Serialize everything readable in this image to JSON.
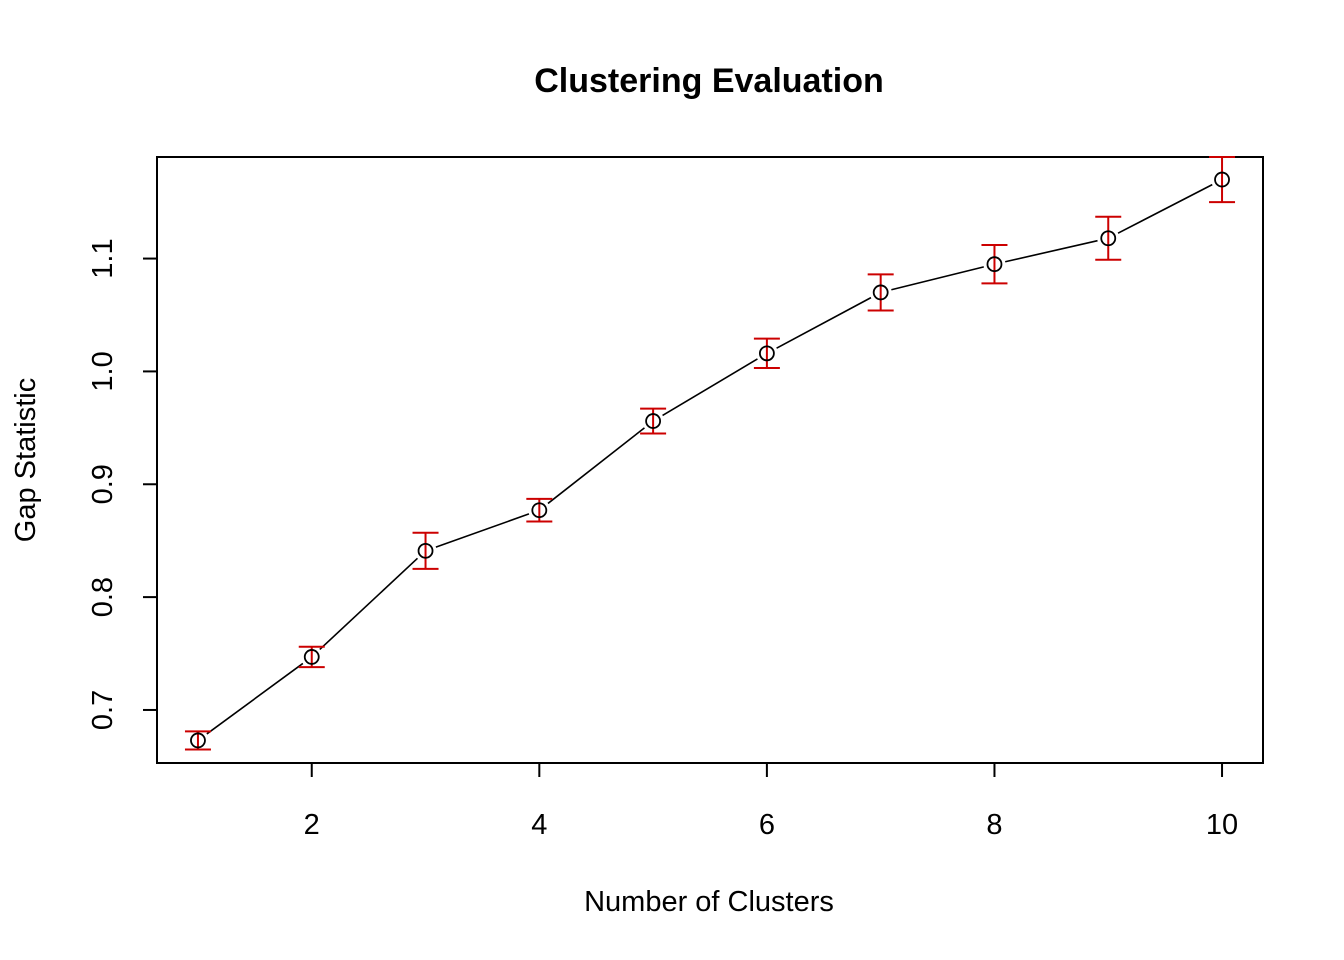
{
  "chart_data": {
    "type": "scatter",
    "title": "Clustering Evaluation",
    "xlabel": "Number of Clusters",
    "ylabel": "Gap Statistic",
    "x": [
      1,
      2,
      3,
      4,
      5,
      6,
      7,
      8,
      9,
      10
    ],
    "series": [
      {
        "values": [
          0.673,
          0.747,
          0.841,
          0.877,
          0.956,
          1.016,
          1.07,
          1.095,
          1.118,
          1.17
        ],
        "error": [
          0.008,
          0.009,
          0.016,
          0.01,
          0.011,
          0.013,
          0.016,
          0.017,
          0.019,
          0.02
        ],
        "line_color": "#000000",
        "marker": "open-circle",
        "error_bar_color": "#CC0000"
      }
    ],
    "xticks": [
      "2",
      "4",
      "6",
      "8",
      "10"
    ],
    "xtick_values": [
      2,
      4,
      6,
      8,
      10
    ],
    "yticks": [
      "0.7",
      "0.8",
      "0.9",
      "1.0",
      "1.1"
    ],
    "ytick_values": [
      0.7,
      0.8,
      0.9,
      1.0,
      1.1
    ],
    "xlim": [
      0.64,
      10.36
    ],
    "ylim": [
      0.653,
      1.19
    ],
    "grid": false,
    "legend": "none"
  }
}
